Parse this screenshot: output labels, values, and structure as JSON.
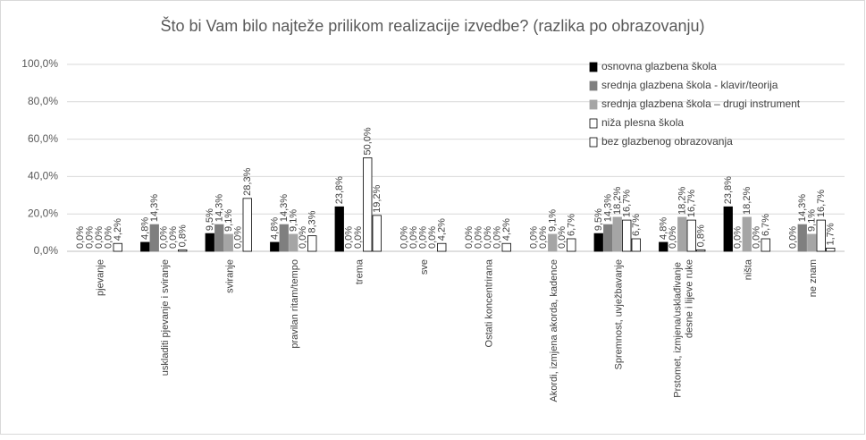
{
  "chart_data": {
    "type": "bar",
    "title": "Što bi Vam bilo najteže prilikom realizacije izvedbe? (razlika po obrazovanju)",
    "categories": [
      "pjevanje",
      "uskladiti pjevanje i sviranje",
      "sviranje",
      "pravilan ritam/tempo",
      "trema",
      "sve",
      "Ostati koncentrirana",
      "Akordi, izmjena akorda, kadence",
      "Spremnost, uvježbavanje",
      "Prstomet, izmjena/usklađivanje desne i lijeve ruke",
      "ništa",
      "ne znam"
    ],
    "series": [
      {
        "name": "osnovna glazbena škola",
        "color": "#000000",
        "values": [
          0,
          4.8,
          9.5,
          4.8,
          23.8,
          0,
          0,
          0,
          9.5,
          4.8,
          23.8,
          0
        ],
        "value_labels": [
          "0,0%",
          "4,8%",
          "9,5%",
          "4,8%",
          "23,8%",
          "0,0%",
          "0,0%",
          "0,0%",
          "9,5%",
          "4,8%",
          "23,8%",
          "0,0%"
        ]
      },
      {
        "name": "srednja glazbena škola - klavir/teorija",
        "color": "#7f7f7f",
        "values": [
          0,
          14.3,
          14.3,
          14.3,
          0,
          0,
          0,
          0,
          14.3,
          0,
          0,
          14.3
        ],
        "value_labels": [
          "0,0%",
          "14,3%",
          "14,3%",
          "14,3%",
          "0,0%",
          "0,0%",
          "0,0%",
          "0,0%",
          "14,3%",
          "0,0%",
          "0,0%",
          "14,3%"
        ]
      },
      {
        "name": "srednja glazbena škola – drugi instrument",
        "color": "#a5a5a5",
        "values": [
          0,
          0,
          9.1,
          9.1,
          0,
          0,
          0,
          9.1,
          18.2,
          18.2,
          18.2,
          9.1
        ],
        "value_labels": [
          "0,0%",
          "0,0%",
          "9,1%",
          "9,1%",
          "0,0%",
          "0,0%",
          "0,0%",
          "9,1%",
          "18,2%",
          "18,2%",
          "18,2%",
          "9,1%"
        ]
      },
      {
        "name": "niža plesna škola",
        "color": "#ffffff",
        "values": [
          0,
          0,
          0,
          0,
          50,
          0,
          0,
          0,
          16.7,
          16.7,
          0,
          16.7
        ],
        "value_labels": [
          "0,0%",
          "0,0%",
          "0,0%",
          "0,0%",
          "50,0%",
          "0,0%",
          "0,0%",
          "0,0%",
          "16,7%",
          "16,7%",
          "0,0%",
          "16,7%"
        ]
      },
      {
        "name": "bez glazbenog obrazovanja",
        "color": "#ffffff",
        "values": [
          4.2,
          0.8,
          28.3,
          8.3,
          19.2,
          4.2,
          4.2,
          6.7,
          6.7,
          0.8,
          6.7,
          1.7
        ],
        "value_labels": [
          "4,2%",
          "0,8%",
          "28,3%",
          "8,3%",
          "19,2%",
          "4,2%",
          "4,2%",
          "6,7%",
          "6,7%",
          "0,8%",
          "6,7%",
          "1,7%"
        ]
      }
    ],
    "ylim": [
      0,
      100
    ],
    "yticks": [
      {
        "value": 0,
        "label": "0,0%"
      },
      {
        "value": 20,
        "label": "20,0%"
      },
      {
        "value": 40,
        "label": "40,0%"
      },
      {
        "value": 60,
        "label": "60,0%"
      },
      {
        "value": 80,
        "label": "80,0%"
      },
      {
        "value": 100,
        "label": "100,0%"
      }
    ],
    "grid": true,
    "legend": "top-right"
  }
}
